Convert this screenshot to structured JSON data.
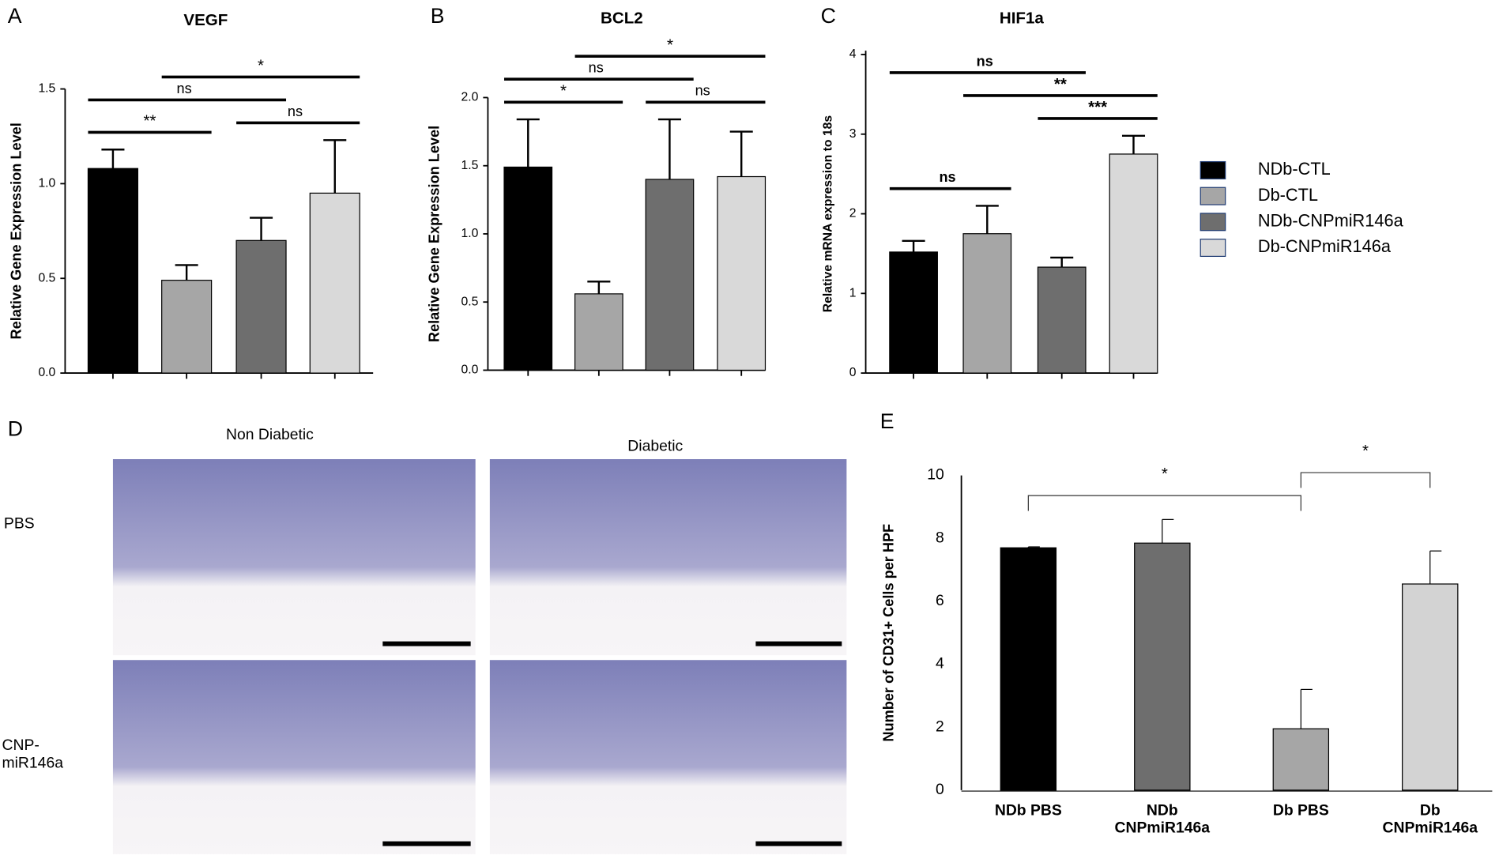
{
  "chart_data": [
    {
      "panel": "A",
      "type": "bar",
      "title": "VEGF",
      "ylabel": "Relative Gene Expression Level",
      "ylim": [
        0,
        1.5
      ],
      "yticks": [
        {
          "value": 0,
          "label": "0.0"
        },
        {
          "value": 0.5,
          "label": "0.5"
        },
        {
          "value": 1,
          "label": "1.0"
        },
        {
          "value": 1.5,
          "label": "1.5"
        }
      ],
      "values": [
        1.08,
        0.49,
        0.7,
        0.95
      ],
      "errors": [
        0.1,
        0.08,
        0.12,
        0.28
      ],
      "colors": [
        "#000000",
        "#a6a6a6",
        "#6e6e6e",
        "#d9d9d9"
      ],
      "annotations": [
        {
          "text": "**",
          "from": 0,
          "to": 1
        },
        {
          "text": "ns",
          "from": 2,
          "to": 3
        },
        {
          "text": "ns",
          "from": 0,
          "to": 2
        },
        {
          "text": "*",
          "from": 1,
          "to": 3
        }
      ]
    },
    {
      "panel": "B",
      "type": "bar",
      "title": "BCL2",
      "ylabel": "Relative Gene Expression Level",
      "ylim": [
        0,
        2
      ],
      "yticks": [
        {
          "value": 0,
          "label": "0.0"
        },
        {
          "value": 0.5,
          "label": "0.5"
        },
        {
          "value": 1,
          "label": "1.0"
        },
        {
          "value": 1.5,
          "label": "1.5"
        },
        {
          "value": 2,
          "label": "2.0"
        }
      ],
      "values": [
        1.49,
        0.56,
        1.4,
        1.42
      ],
      "errors": [
        0.35,
        0.09,
        0.44,
        0.33
      ],
      "colors": [
        "#000000",
        "#a6a6a6",
        "#6e6e6e",
        "#d9d9d9"
      ],
      "annotations": [
        {
          "text": "*",
          "from": 0,
          "to": 1
        },
        {
          "text": "ns",
          "from": 2,
          "to": 3
        },
        {
          "text": "ns",
          "from": 0,
          "to": 2
        },
        {
          "text": "*",
          "from": 1,
          "to": 3
        }
      ]
    },
    {
      "panel": "C",
      "type": "bar",
      "title": "HIF1a",
      "ylabel": "Relative mRNA expression to 18s",
      "ylim": [
        0,
        4
      ],
      "yticks": [
        0,
        1,
        2,
        3,
        4
      ],
      "values": [
        1.52,
        1.75,
        1.33,
        2.75
      ],
      "errors": [
        0.14,
        0.35,
        0.12,
        0.23
      ],
      "colors": [
        "#000000",
        "#a6a6a6",
        "#6e6e6e",
        "#d9d9d9"
      ],
      "annotations": [
        {
          "text": "ns",
          "from": 0,
          "to": 1
        },
        {
          "text": "***",
          "from": 2,
          "to": 3
        },
        {
          "text": "**",
          "from": 1,
          "to": 3
        },
        {
          "text": "ns",
          "from": 0,
          "to": 2
        }
      ]
    },
    {
      "panel": "E",
      "type": "bar",
      "ylabel": "Number of CD31+ Cells per HPF",
      "ylim": [
        0,
        10
      ],
      "yticks": [
        0,
        2,
        4,
        6,
        8,
        10
      ],
      "categories": [
        "NDb PBS",
        "NDb\nCNPmiR146a",
        "Db PBS",
        "Db\nCNPmiR146a"
      ],
      "values": [
        7.7,
        7.85,
        1.95,
        6.55
      ],
      "errors": [
        0.03,
        0.75,
        1.25,
        1.05
      ],
      "colors": [
        "#000000",
        "#6e6e6e",
        "#a6a6a6",
        "#d3d3d3"
      ],
      "annotations": [
        {
          "text": "*",
          "from": 0,
          "to": 2
        },
        {
          "text": "*",
          "from": 2,
          "to": 3
        }
      ]
    }
  ],
  "legend": [
    {
      "name": "NDb-CTL",
      "color": "#000000"
    },
    {
      "name": "Db-CTL",
      "color": "#a6a6a6"
    },
    {
      "name": "NDb-CNPmiR146a",
      "color": "#6e6e6e"
    },
    {
      "name": "Db-CNPmiR146a",
      "color": "#d9d9d9"
    }
  ],
  "panel_d": {
    "label": "D",
    "columns": [
      "Non Diabetic",
      "Diabetic"
    ],
    "rows": [
      "PBS",
      "CNP-\nmiR146a"
    ]
  }
}
